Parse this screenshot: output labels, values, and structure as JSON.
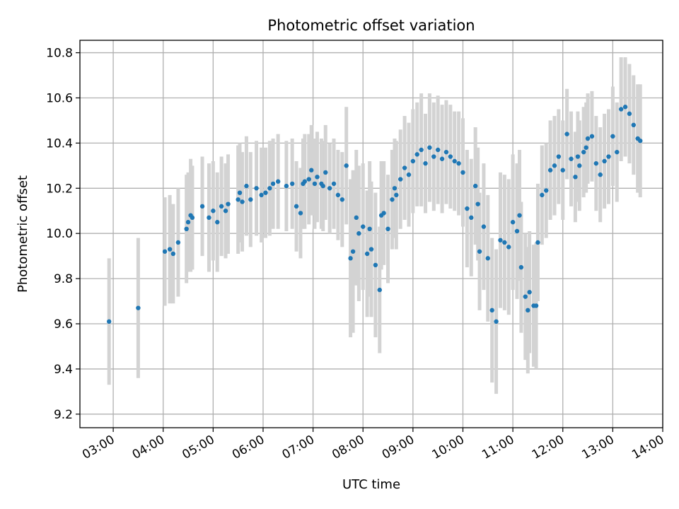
{
  "chart_data": {
    "type": "scatter",
    "title": "Photometric offset variation",
    "xlabel": "UTC time",
    "ylabel": "Photometric offset",
    "xlim": [
      "02:20",
      "14:00"
    ],
    "ylim": [
      9.14,
      10.855
    ],
    "grid": true,
    "x_ticks": [
      "03:00",
      "04:00",
      "05:00",
      "06:00",
      "07:00",
      "08:00",
      "09:00",
      "10:00",
      "11:00",
      "12:00",
      "13:00",
      "14:00"
    ],
    "y_ticks": [
      "9.2",
      "9.4",
      "9.6",
      "9.8",
      "10.0",
      "10.2",
      "10.4",
      "10.6",
      "10.8"
    ],
    "marker_color": "#1f77b4",
    "errorbar_color": "#d3d3d3",
    "series": [
      {
        "x": [
          "02:55",
          "03:30",
          "04:02",
          "04:08",
          "04:12",
          "04:18",
          "04:28",
          "04:30",
          "04:33",
          "04:35",
          "04:47",
          "04:55",
          "05:00",
          "05:05",
          "05:10",
          "05:15",
          "05:18",
          "05:30",
          "05:32",
          "05:35",
          "05:40",
          "05:45",
          "05:52",
          "05:58",
          "06:03",
          "06:08",
          "06:12",
          "06:18",
          "06:28",
          "06:35",
          "06:40",
          "06:45",
          "06:48",
          "06:50",
          "06:55",
          "06:58",
          "07:02",
          "07:05",
          "07:10",
          "07:12",
          "07:15",
          "07:20",
          "07:25",
          "07:30",
          "07:35",
          "07:40",
          "07:45",
          "07:48",
          "07:52",
          "07:55",
          "08:00",
          "08:05",
          "08:08",
          "08:10",
          "08:15",
          "08:20",
          "08:22",
          "08:25",
          "08:30",
          "08:35",
          "08:38",
          "08:40",
          "08:45",
          "08:50",
          "08:55",
          "09:00",
          "09:05",
          "09:10",
          "09:15",
          "09:20",
          "09:25",
          "09:30",
          "09:35",
          "09:40",
          "09:45",
          "09:50",
          "09:55",
          "10:00",
          "10:05",
          "10:10",
          "10:15",
          "10:18",
          "10:20",
          "10:25",
          "10:30",
          "10:35",
          "10:40",
          "10:45",
          "10:50",
          "10:55",
          "11:00",
          "11:05",
          "11:08",
          "11:10",
          "11:15",
          "11:18",
          "11:20",
          "11:25",
          "11:28",
          "11:30",
          "11:35",
          "11:40",
          "11:45",
          "11:50",
          "11:55",
          "12:00",
          "12:05",
          "12:10",
          "12:15",
          "12:18",
          "12:20",
          "12:25",
          "12:28",
          "12:30",
          "12:35",
          "12:40",
          "12:45",
          "12:50",
          "12:55",
          "13:00",
          "13:05",
          "13:10",
          "13:15",
          "13:20",
          "13:25",
          "13:30",
          "13:33"
        ],
        "y": [
          9.61,
          9.67,
          9.92,
          9.93,
          9.91,
          9.96,
          10.02,
          10.05,
          10.08,
          10.07,
          10.12,
          10.07,
          10.1,
          10.05,
          10.12,
          10.1,
          10.13,
          10.15,
          10.18,
          10.14,
          10.21,
          10.15,
          10.2,
          10.17,
          10.18,
          10.2,
          10.22,
          10.23,
          10.21,
          10.22,
          10.12,
          10.09,
          10.22,
          10.23,
          10.24,
          10.28,
          10.22,
          10.25,
          10.22,
          10.21,
          10.27,
          10.2,
          10.22,
          10.17,
          10.15,
          10.3,
          9.89,
          9.92,
          10.07,
          10.0,
          10.03,
          9.91,
          10.02,
          9.93,
          9.86,
          9.75,
          10.08,
          10.09,
          10.02,
          10.15,
          10.2,
          10.17,
          10.24,
          10.29,
          10.26,
          10.32,
          10.35,
          10.37,
          10.31,
          10.38,
          10.34,
          10.37,
          10.33,
          10.36,
          10.34,
          10.32,
          10.31,
          10.27,
          10.11,
          10.07,
          10.21,
          10.13,
          9.92,
          10.03,
          9.89,
          9.66,
          9.61,
          9.97,
          9.96,
          9.94,
          10.05,
          10.01,
          10.08,
          9.85,
          9.72,
          9.66,
          9.74,
          9.68,
          9.68,
          9.96,
          10.17,
          10.19,
          10.28,
          10.3,
          10.34,
          10.28,
          10.44,
          10.33,
          10.25,
          10.34,
          10.3,
          10.36,
          10.38,
          10.42,
          10.43,
          10.31,
          10.26,
          10.32,
          10.34,
          10.43,
          10.36,
          10.55,
          10.56,
          10.53,
          10.48,
          10.42,
          10.41
        ],
        "yerr": [
          0.28,
          0.31,
          0.24,
          0.24,
          0.22,
          0.24,
          0.24,
          0.22,
          0.25,
          0.23,
          0.22,
          0.24,
          0.22,
          0.22,
          0.22,
          0.21,
          0.22,
          0.24,
          0.22,
          0.22,
          0.22,
          0.21,
          0.21,
          0.21,
          0.2,
          0.21,
          0.2,
          0.21,
          0.2,
          0.2,
          0.2,
          0.2,
          0.2,
          0.21,
          0.2,
          0.2,
          0.2,
          0.2,
          0.2,
          0.2,
          0.21,
          0.2,
          0.2,
          0.2,
          0.21,
          0.26,
          0.35,
          0.36,
          0.3,
          0.3,
          0.28,
          0.28,
          0.3,
          0.3,
          0.32,
          0.28,
          0.24,
          0.23,
          0.24,
          0.22,
          0.22,
          0.24,
          0.22,
          0.23,
          0.23,
          0.23,
          0.23,
          0.25,
          0.22,
          0.24,
          0.24,
          0.24,
          0.24,
          0.23,
          0.23,
          0.22,
          0.23,
          0.24,
          0.26,
          0.26,
          0.26,
          0.25,
          0.26,
          0.28,
          0.28,
          0.32,
          0.32,
          0.3,
          0.3,
          0.3,
          0.3,
          0.3,
          0.29,
          0.29,
          0.28,
          0.28,
          0.27,
          0.27,
          0.28,
          0.26,
          0.22,
          0.21,
          0.22,
          0.22,
          0.21,
          0.22,
          0.2,
          0.21,
          0.2,
          0.2,
          0.2,
          0.2,
          0.2,
          0.2,
          0.2,
          0.21,
          0.21,
          0.21,
          0.21,
          0.22,
          0.22,
          0.23,
          0.22,
          0.22,
          0.22,
          0.24,
          0.25
        ]
      }
    ]
  }
}
